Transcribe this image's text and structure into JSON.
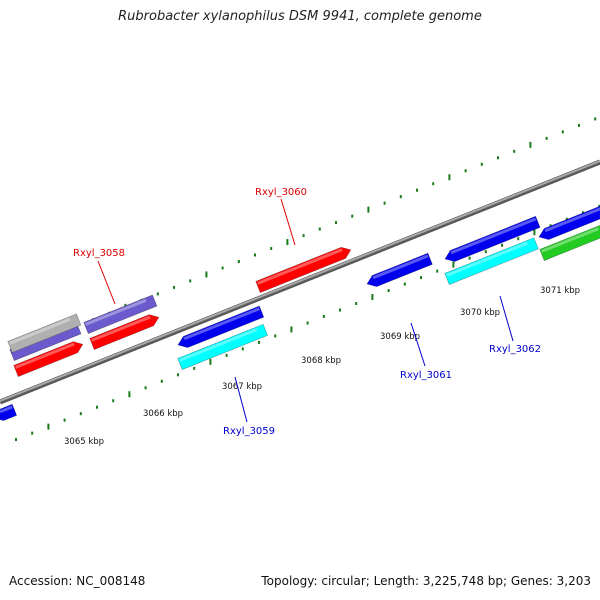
{
  "title": "Rubrobacter xylanophilus DSM 9941, complete genome",
  "footer": {
    "accession": "Accession: NC_008148",
    "info": "Topology: circular; Length: 3,225,748 bp; Genes: 3,203"
  },
  "colors": {
    "backbone": "#808080",
    "forward_ticks": "#1a7a1a",
    "reverse_ticks": "#1a7a1a",
    "red": "#ff0000",
    "blue": "#0000ee",
    "cyan": "#00ffff",
    "purple": "#6a5acd",
    "silver": "#b0b0b0",
    "green": "#22cc22",
    "label_forward": "#dd0000",
    "label_reverse": "#0000cc"
  },
  "scale_labels": [
    "3065 kbp",
    "3066 kbp",
    "3067 kbp",
    "3068 kbp",
    "3069 kbp",
    "3070 kbp",
    "3071 kbp"
  ],
  "gene_labels": [
    {
      "text": "Rxyl_3058",
      "strand": "forward"
    },
    {
      "text": "Rxyl_3060",
      "strand": "forward"
    },
    {
      "text": "Rxyl_3059",
      "strand": "reverse"
    },
    {
      "text": "Rxyl_3061",
      "strand": "reverse"
    },
    {
      "text": "Rxyl_3062",
      "strand": "reverse"
    }
  ]
}
